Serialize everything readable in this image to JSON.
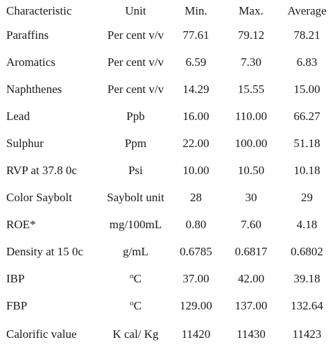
{
  "table": {
    "headers": {
      "characteristic": "Characteristic",
      "unit": "Unit",
      "min": "Min.",
      "max": "Max.",
      "average": "Average"
    },
    "rows": [
      {
        "characteristic": "Paraffins",
        "unit": "Per cent v/v",
        "min": "77.61",
        "max": "79.12",
        "average": "78.21"
      },
      {
        "characteristic": "Aromatics",
        "unit": "Per cent v/v",
        "min": "6.59",
        "max": "7.30",
        "average": "6.83"
      },
      {
        "characteristic": "Naphthenes",
        "unit": "Per cent v/v",
        "min": "14.29",
        "max": "15.55",
        "average": "15.00"
      },
      {
        "characteristic": "Lead",
        "unit": "Ppb",
        "min": "16.00",
        "max": "110.00",
        "average": "66.27"
      },
      {
        "characteristic": "Sulphur",
        "unit": "Ppm",
        "min": "22.00",
        "max": "100.00",
        "average": "51.18"
      },
      {
        "characteristic": "RVP at 37.8 0c",
        "unit": "Psi",
        "min": "10.00",
        "max": "10.50",
        "average": "10.18"
      },
      {
        "characteristic": "Color Saybolt",
        "unit": "Saybolt unit",
        "min": "28",
        "max": "30",
        "average": "29"
      },
      {
        "characteristic": "ROE*",
        "unit": "mg/100mL",
        "min": "0.80",
        "max": "7.60",
        "average": "4.18"
      },
      {
        "characteristic": "Density at 15 0c",
        "unit": "g/mL",
        "min": "0.6785",
        "max": "0.6817",
        "average": "0.6802"
      },
      {
        "characteristic": "IBP",
        "unit": "C",
        "unit_sup": "o",
        "min": "37.00",
        "max": "42.00",
        "average": "39.18"
      },
      {
        "characteristic": "FBP",
        "unit": "C",
        "unit_sup": "o",
        "min": "129.00",
        "max": "137.00",
        "average": "132.64"
      },
      {
        "characteristic": "Calorific value",
        "unit": "K cal/ Kg",
        "min": "11420",
        "max": "11430",
        "average": "11423"
      }
    ]
  }
}
